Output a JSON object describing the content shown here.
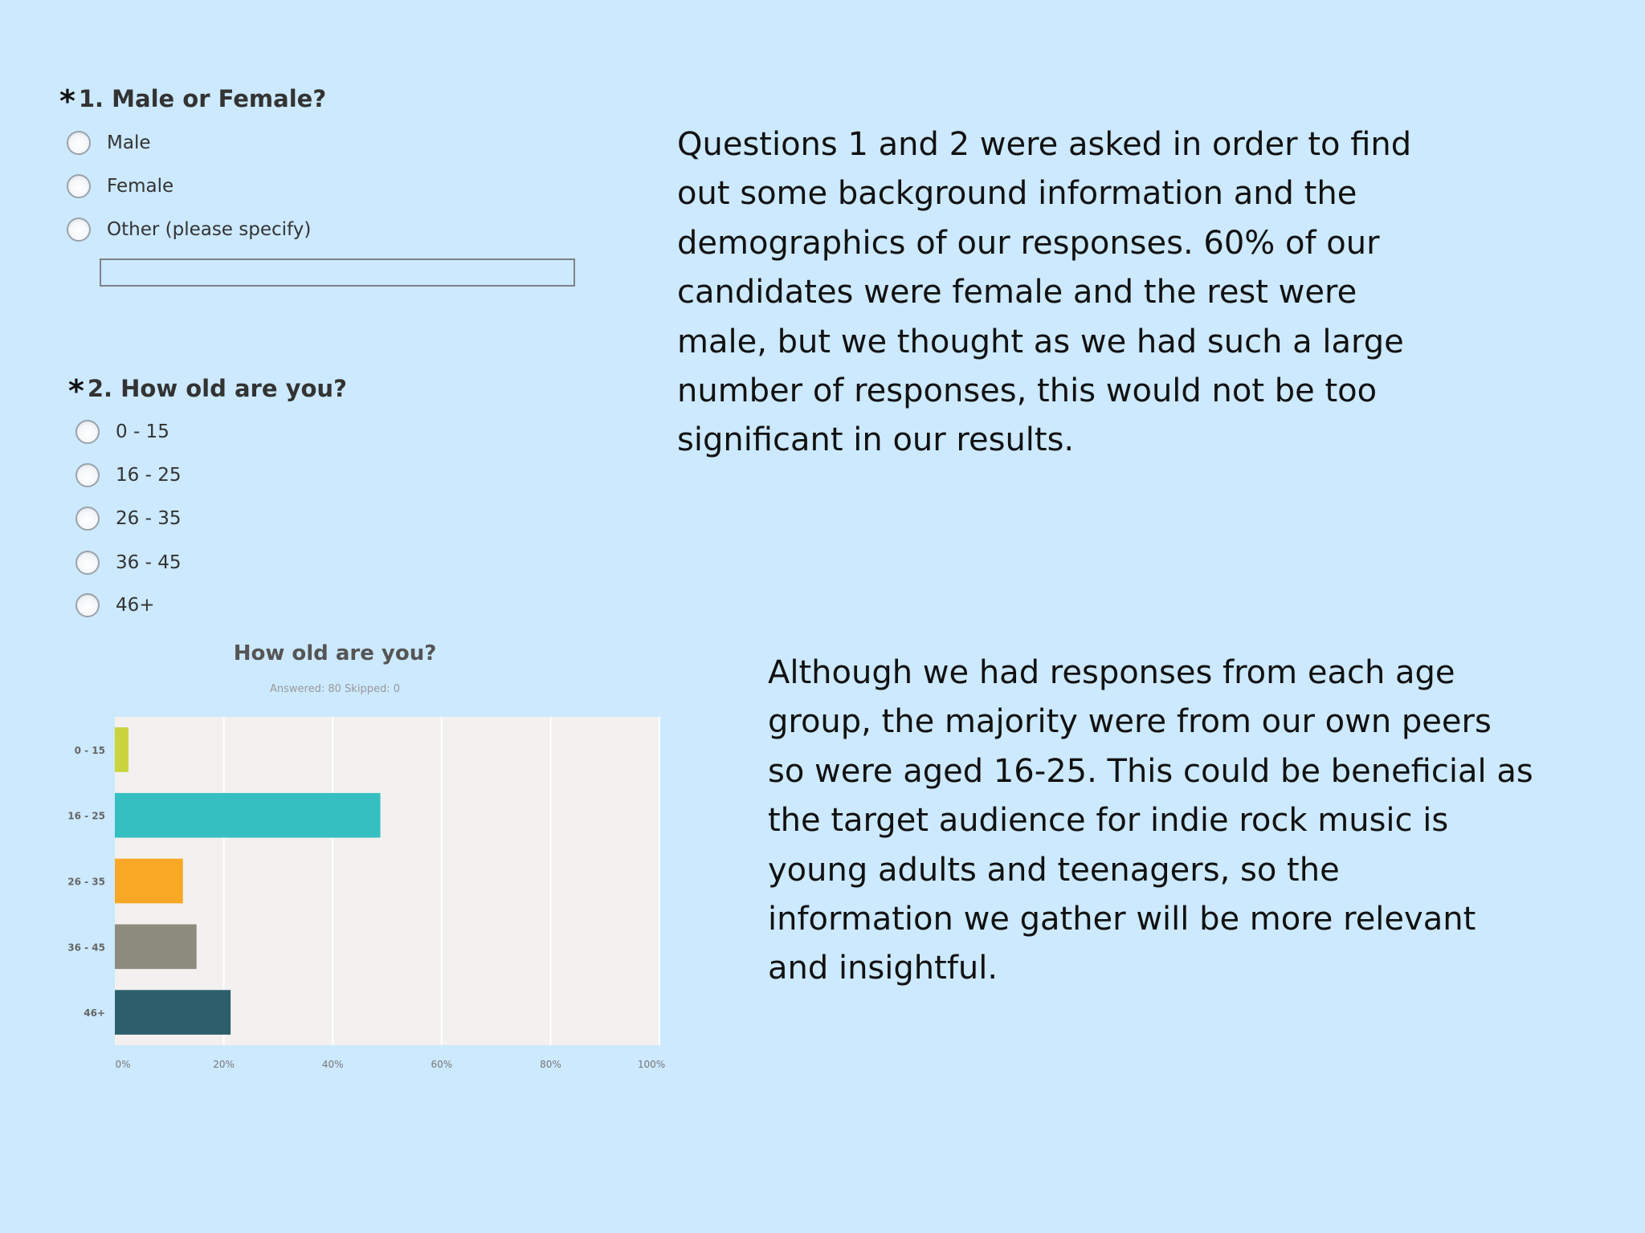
{
  "q1": {
    "star": "*",
    "title": "1. Male or Female?",
    "options": [
      "Male",
      "Female",
      "Other (please specify)"
    ]
  },
  "q2": {
    "star": "*",
    "title": "2. How old are you?",
    "options": [
      "0 - 15",
      "16 - 25",
      "26 - 35",
      "36 - 45",
      "46+"
    ]
  },
  "text1": {
    "lines": [
      "Questions 1 and 2 were asked in order to find",
      "out some background information and the",
      "demographics of our responses. 60% of our",
      "candidates were female and the rest were",
      "male, but we thought as we had such a large",
      "number of responses, this would not be too",
      "significant in our results."
    ]
  },
  "text2": {
    "lines": [
      "Although we had responses from each age",
      "group, the majority were from our own peers",
      "so were aged 16-25. This could be beneficial as",
      "the target audience for indie rock music is",
      "young adults and teenagers, so the",
      "information we gather will be more relevant",
      "and insightful."
    ]
  },
  "chart_data": {
    "type": "bar",
    "orientation": "horizontal",
    "title": "How old are you?",
    "subtitle": "Answered: 80    Skipped: 0",
    "categories": [
      "0 - 15",
      "16 - 25",
      "26 - 35",
      "36 - 45",
      "46+"
    ],
    "values": [
      2.5,
      48.75,
      12.5,
      15,
      21.25
    ],
    "colors": [
      "#c9d43f",
      "#35bfc1",
      "#f8a825",
      "#8c8c7e",
      "#2c5f6b"
    ],
    "x_ticks": [
      "0%",
      "20%",
      "40%",
      "60%",
      "80%",
      "100%"
    ],
    "xlim": [
      0,
      100
    ],
    "unit": "%",
    "grid": true
  }
}
